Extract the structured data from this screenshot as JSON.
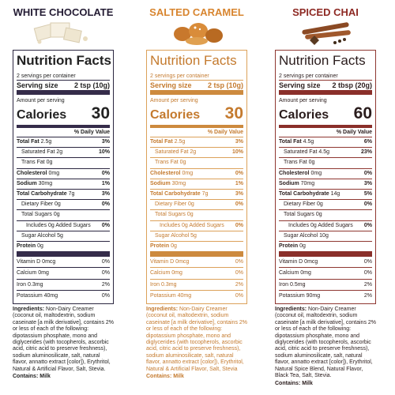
{
  "labels": [
    {
      "header": "WHITE CHOCOLATE",
      "title": "Nutrition Facts",
      "servings_per_container": "2 servings per container",
      "serving_size_label": "Serving size",
      "serving_size": "2 tsp (10g)",
      "amount_per_serving": "Amount per serving",
      "calories_label": "Calories",
      "calories": 30,
      "daily_value_header": "% Daily Value",
      "rows": [
        {
          "name": "Total Fat",
          "amount": "2.5g",
          "dv": "3%"
        },
        {
          "name": "Saturated Fat",
          "amount": "2g",
          "dv": "10%"
        },
        {
          "name": "Trans Fat",
          "amount": "0g"
        },
        {
          "name": "Cholesterol",
          "amount": "0mg",
          "dv": "0%"
        },
        {
          "name": "Sodium",
          "amount": "30mg",
          "dv": "1%"
        },
        {
          "name": "Total Carbohydrate",
          "amount": "7g",
          "dv": "3%"
        },
        {
          "name": "Dietary Fiber",
          "amount": "0g",
          "dv": "0%"
        },
        {
          "name": "Total Sugars",
          "amount": "0g"
        },
        {
          "name": "Includes 0g Added Sugars",
          "dv": "0%"
        },
        {
          "name": "Sugar Alcohol",
          "amount": "5g"
        },
        {
          "name": "Protein",
          "amount": "0g"
        }
      ],
      "vitamins": [
        {
          "name": "Vitamin D",
          "amount": "0mcg",
          "dv": "0%"
        },
        {
          "name": "Calcium",
          "amount": "0mg",
          "dv": "0%"
        },
        {
          "name": "Iron",
          "amount": "0.3mg",
          "dv": "2%"
        },
        {
          "name": "Potassium",
          "amount": "40mg",
          "dv": "0%"
        }
      ],
      "ingredients": {
        "label": "Ingredients:",
        "text": "Non-Dairy Creamer (coconut oil, maltodextrin, sodium caseinate [a milk derivative], contains 2% or less of each of the following: dipotassium phosphate, mono and diglycerides (with tocopherols, ascorbic acid, citric acid to preserve freshness), sodium aluminosilicate, salt, natural flavor, annatto extract [color]), Erythritol, Natural & Artificial Flavor, Salt, Stevia.",
        "contains_label": "Contains:",
        "contains": "Milk"
      }
    },
    {
      "header": "SALTED CARAMEL",
      "title": "Nutrition Facts",
      "servings_per_container": "2 servings per container",
      "serving_size_label": "Serving size",
      "serving_size": "2 tsp (10g)",
      "amount_per_serving": "Amount per serving",
      "calories_label": "Calories",
      "calories": 30,
      "daily_value_header": "% Daily Value",
      "rows": [
        {
          "name": "Total Fat",
          "amount": "2.5g",
          "dv": "3%"
        },
        {
          "name": "Saturated Fat",
          "amount": "2g",
          "dv": "10%"
        },
        {
          "name": "Trans Fat",
          "amount": "0g"
        },
        {
          "name": "Cholesterol",
          "amount": "0mg",
          "dv": "0%"
        },
        {
          "name": "Sodium",
          "amount": "30mg",
          "dv": "1%"
        },
        {
          "name": "Total Carbohydrate",
          "amount": "7g",
          "dv": "3%"
        },
        {
          "name": "Dietary Fiber",
          "amount": "0g",
          "dv": "0%"
        },
        {
          "name": "Total Sugars",
          "amount": "0g"
        },
        {
          "name": "Includes 0g Added Sugars",
          "dv": "0%"
        },
        {
          "name": "Sugar Alcohol",
          "amount": "5g"
        },
        {
          "name": "Protein",
          "amount": "0g"
        }
      ],
      "vitamins": [
        {
          "name": "Vitamin D",
          "amount": "0mcg",
          "dv": "0%"
        },
        {
          "name": "Calcium",
          "amount": "0mg",
          "dv": "0%"
        },
        {
          "name": "Iron",
          "amount": "0.3mg",
          "dv": "2%"
        },
        {
          "name": "Potassium",
          "amount": "40mg",
          "dv": "0%"
        }
      ],
      "ingredients": {
        "label": "Ingredients:",
        "text": "Non-Dairy Creamer (coconut oil, maltodextrin, sodium caseinate [a milk derivative], contains 2% or less of each of the following: dipotassium phosphate, mono and diglycerides (with tocopherols, ascorbic acid, citric acid to preserve freshness), sodium aluminosilicate, salt, natural flavor, annatto extract [color]), Erythritol, Natural & Artificial Flavor, Salt, Stevia",
        "contains_label": "Contains:",
        "contains": "Milk"
      }
    },
    {
      "header": "SPICED CHAI",
      "title": "Nutrition Facts",
      "servings_per_container": "2 servings per container",
      "serving_size_label": "Serving size",
      "serving_size": "2 tbsp (20g)",
      "amount_per_serving": "Amount per serving",
      "calories_label": "Calories",
      "calories": 60,
      "daily_value_header": "% Daily Value",
      "rows": [
        {
          "name": "Total Fat",
          "amount": "4.5g",
          "dv": "6%"
        },
        {
          "name": "Saturated Fat",
          "amount": "4.5g",
          "dv": "23%"
        },
        {
          "name": "Trans Fat",
          "amount": "0g"
        },
        {
          "name": "Cholesterol",
          "amount": "0mg",
          "dv": "0%"
        },
        {
          "name": "Sodium",
          "amount": "70mg",
          "dv": "3%"
        },
        {
          "name": "Total Carbohydrate",
          "amount": "14g",
          "dv": "5%"
        },
        {
          "name": "Dietary Fiber",
          "amount": "0g",
          "dv": "0%"
        },
        {
          "name": "Total Sugars",
          "amount": "0g"
        },
        {
          "name": "Includes 0g Added Sugars",
          "dv": "0%"
        },
        {
          "name": "Sugar Alcohol",
          "amount": "10g"
        },
        {
          "name": "Protein",
          "amount": "0g"
        }
      ],
      "vitamins": [
        {
          "name": "Vitamin D",
          "amount": "0mcg",
          "dv": "0%"
        },
        {
          "name": "Calcium",
          "amount": "0mg",
          "dv": "0%"
        },
        {
          "name": "Iron",
          "amount": "0.5mg",
          "dv": "2%"
        },
        {
          "name": "Potassium",
          "amount": "90mg",
          "dv": "2%"
        }
      ],
      "ingredients": {
        "label": "Ingredients:",
        "text": "Non-Dairy Creamer (coconut oil, maltodextrin, sodium caseinate [a milk derivative], contains 2% or less of each of the following: dipotassium phosphate, mono and diglycerides (with tocopherols, ascorbic acid, citric acid to preserve freshness), sodium aluminosilicate, salt, natural flavor, annatto extract [color]), Erythritol, Natural Spice Blend, Natural Flavor, Black Tea, Salt, Stevia.",
        "contains_label": "Contains:",
        "contains": "Milk"
      }
    }
  ]
}
